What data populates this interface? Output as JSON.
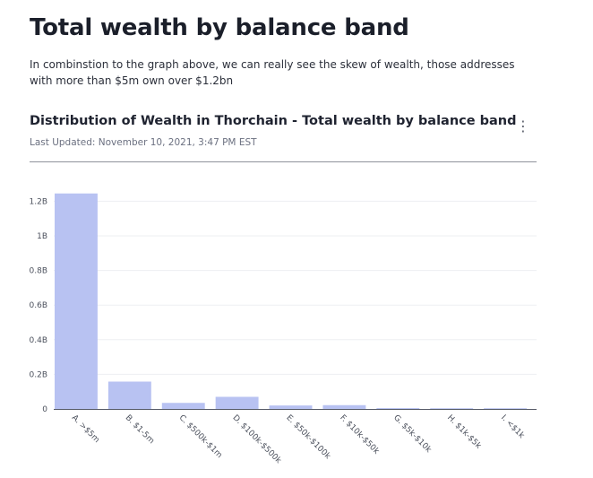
{
  "page": {
    "title": "Total wealth by balance band",
    "intro": "In combinstion to the graph above, we can really see the skew of wealth, those addresses with more than $5m own over $1.2bn"
  },
  "card": {
    "title": "Distribution of Wealth in Thorchain - Total wealth by balance band",
    "updated": "Last Updated: November 10, 2021, 3:47 PM EST",
    "menu_icon": "kebab-menu-icon",
    "menu_glyph": "⋮"
  },
  "chart_data": {
    "type": "bar",
    "title": "",
    "xlabel": "",
    "ylabel": "",
    "categories": [
      "A. >$5m",
      "B. $1-5m",
      "C. $500k-$1m",
      "D. $100k-$500k",
      "E. $50k-$100k",
      "F. $10k-$50k",
      "G. $5k-$10k",
      "H. $1k-$5k",
      "I. <$1k"
    ],
    "values": [
      1245000000,
      158000000,
      35000000,
      70000000,
      20000000,
      22000000,
      5000000,
      4000000,
      1000000
    ],
    "ylim": [
      0,
      1300000000
    ],
    "yticks": [
      0,
      200000000,
      400000000,
      600000000,
      800000000,
      1000000000,
      1200000000
    ],
    "ytick_labels": [
      "0",
      "0.2B",
      "0.4B",
      "0.6B",
      "0.8B",
      "1B",
      "1.2B"
    ],
    "grid": true,
    "legend": "none",
    "bar_color": "#b8c2f2",
    "grid_color": "#eeeff2",
    "axis_color": "#555a66"
  }
}
